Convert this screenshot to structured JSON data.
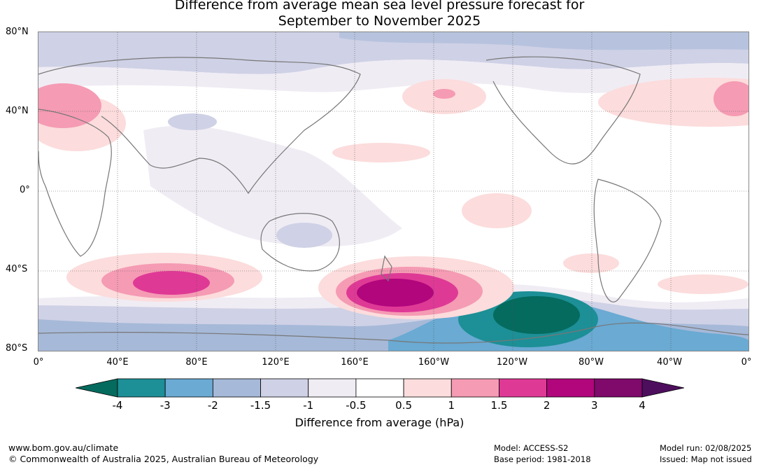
{
  "title_line1": "Difference from average mean sea level pressure forecast for",
  "title_line2": "September to November 2025",
  "lat_labels": [
    "80°N",
    "40°N",
    "0°",
    "40°S",
    "80°S"
  ],
  "lon_labels": [
    "0°",
    "40°E",
    "80°E",
    "120°E",
    "160°E",
    "160°W",
    "120°W",
    "80°W",
    "40°W",
    "0°"
  ],
  "colorbar": {
    "title": "Difference from average (hPa)",
    "ticks": [
      "-4",
      "-3",
      "-2",
      "-1.5",
      "-1",
      "-0.5",
      "0.5",
      "1",
      "1.5",
      "2",
      "3",
      "4"
    ],
    "colors": [
      "#046b5e",
      "#1d8f96",
      "#6aaad3",
      "#a6b9d8",
      "#cfd1e6",
      "#f0ecf4",
      "#ffffff",
      "#fcdcdc",
      "#f59bb4",
      "#df3996",
      "#b1067c",
      "#7f0a6b",
      "#4e0e5e"
    ]
  },
  "footer": {
    "url": "www.bom.gov.au/climate",
    "copyright": "© Commonwealth of Australia 2025, Australian Bureau of Meteorology",
    "model": "Model: ACCESS-S2",
    "base_period": "Base period: 1981-2018",
    "model_run": "Model run: 02/08/2025",
    "issued": "Issued: Map not issued"
  }
}
